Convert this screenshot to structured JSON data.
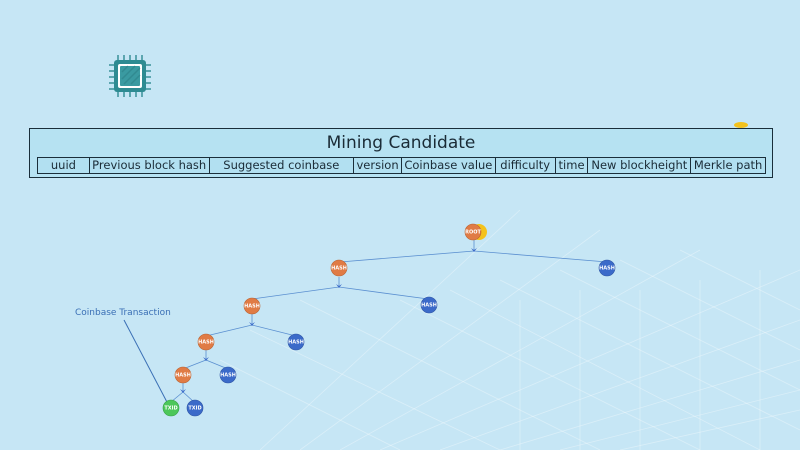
{
  "mining_candidate": {
    "title": "Mining Candidate",
    "fields": [
      "uuid",
      "Previous block hash",
      "Suggested coinbase",
      "version",
      "Coinbase value",
      "difficulty",
      "time",
      "New blockheight",
      "Merkle path"
    ]
  },
  "merkle_tree": {
    "coinbase_label": "Coinbase Transaction",
    "root_label": "ROOT",
    "hash_label": "HASH",
    "txid_label": "TXID"
  },
  "icons": [
    "cpu-chip-icon"
  ],
  "colors": {
    "background": "#c6e6f5",
    "chip": "#2e8b92",
    "orange_node": "#e07b45",
    "blue_node": "#3b6ac9",
    "green_node": "#4cc75a",
    "root_glow": "#f4c21c",
    "edge": "#5a8fd0"
  }
}
